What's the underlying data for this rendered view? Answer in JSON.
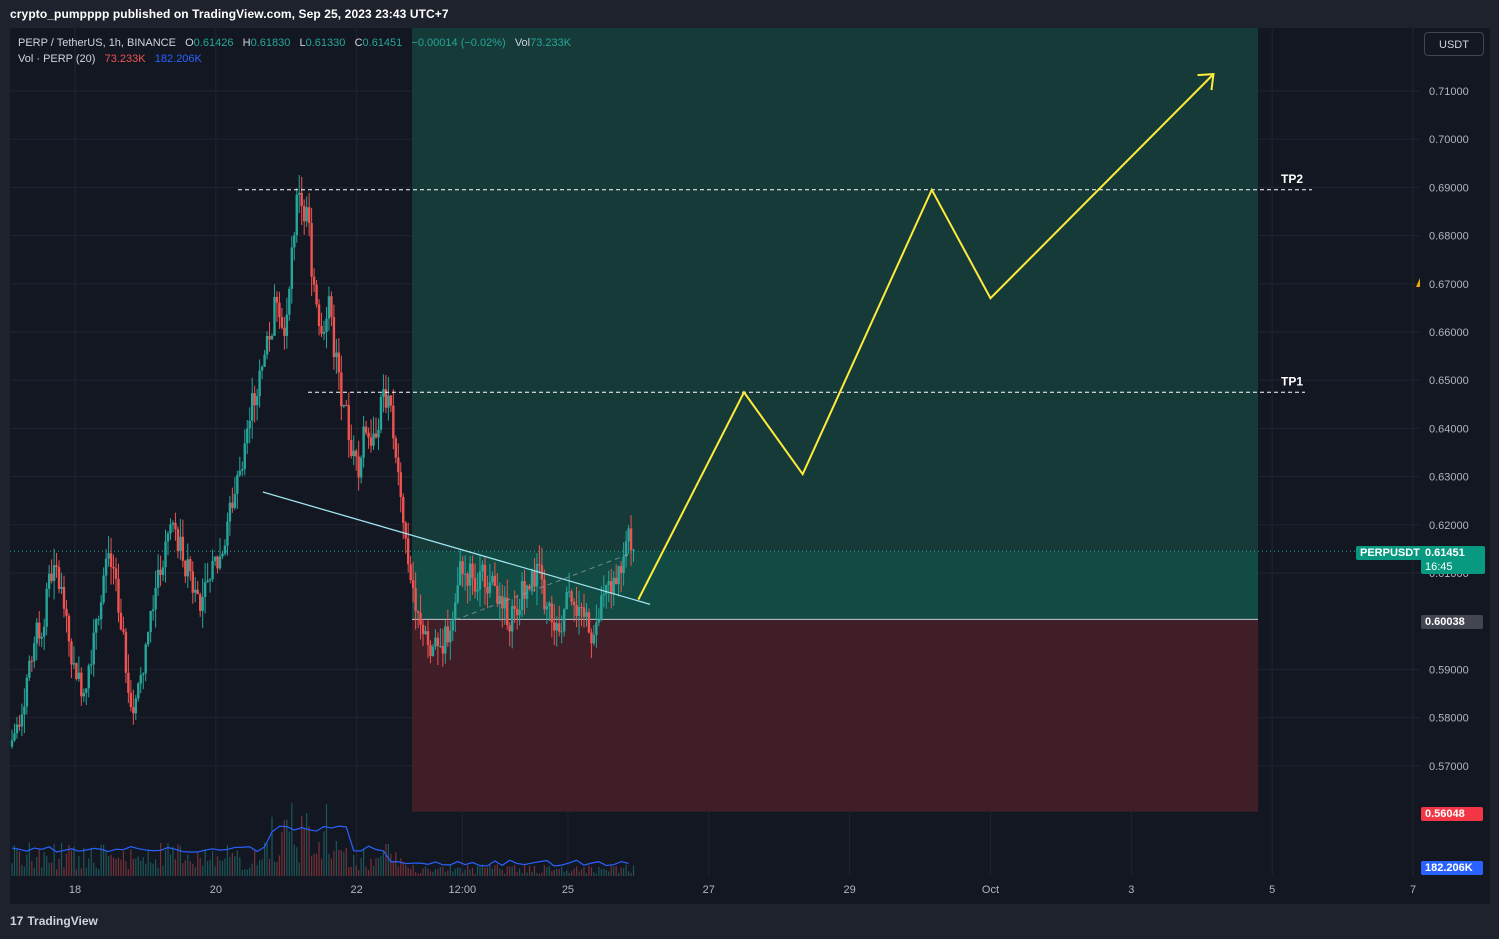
{
  "header": {
    "publisher_line": "crypto_pumpppp published on TradingView.com, Sep 25, 2023 23:43 UTC+7"
  },
  "legend": {
    "symbol": "PERP / TetherUS, 1h, BINANCE",
    "open_label": "O",
    "open": "0.61426",
    "high_label": "H",
    "high": "0.61830",
    "low_label": "L",
    "low": "0.61330",
    "close_label": "C",
    "close": "0.61451",
    "change": "−0.00014 (−0.02%)",
    "vol_label": "Vol",
    "vol": "73.233K",
    "vol_indicator": "Vol · PERP (20)",
    "vol_value": "73.233K",
    "vol_ma_value": "182.206K"
  },
  "toolbar": {
    "currency_button": "USDT"
  },
  "price_axis": {
    "ticks": [
      "0.71000",
      "0.70000",
      "0.69000",
      "0.68000",
      "0.67000",
      "0.66000",
      "0.65000",
      "0.64000",
      "0.63000",
      "0.62000",
      "0.61000",
      "0.59000",
      "0.58000",
      "0.57000"
    ],
    "current_symbol_label": "PERPUSDT",
    "current_price": "0.61451",
    "countdown": "16:45",
    "entry_price": "0.60038",
    "stop_price": "0.56048",
    "volume_ma": "182.206K"
  },
  "time_axis": {
    "ticks": [
      "18",
      "20",
      "22",
      "12:00",
      "25",
      "27",
      "29",
      "Oct",
      "3",
      "5",
      "7"
    ]
  },
  "annotations": {
    "tp1": "TP1",
    "tp2": "TP2"
  },
  "footer": {
    "brand": "TradingView",
    "brand_mark": "17"
  },
  "colors": {
    "bg": "#131722",
    "up": "#26a69a",
    "down": "#ef5350",
    "long_zone": "#16413b",
    "short_zone": "#3f1e27",
    "projection": "#ffeb3b",
    "trendline": "#9fe3ee",
    "vol_ma": "#2962ff"
  },
  "chart_data": {
    "type": "candlestick",
    "y_range": [
      0.555,
      0.717
    ],
    "x_ticks": [
      {
        "label": "18",
        "t": "2023-09-18"
      },
      {
        "label": "20",
        "t": "2023-09-20"
      },
      {
        "label": "22",
        "t": "2023-09-22"
      },
      {
        "label": "12:00",
        "t": "2023-09-23 12:00"
      },
      {
        "label": "25",
        "t": "2023-09-25"
      },
      {
        "label": "27",
        "t": "2023-09-27"
      },
      {
        "label": "29",
        "t": "2023-09-29"
      },
      {
        "label": "Oct",
        "t": "2023-10-01"
      },
      {
        "label": "3",
        "t": "2023-10-03"
      },
      {
        "label": "5",
        "t": "2023-10-05"
      },
      {
        "label": "7",
        "t": "2023-10-07"
      }
    ],
    "price_path_close": [
      0.578,
      0.585,
      0.592,
      0.598,
      0.604,
      0.61,
      0.606,
      0.596,
      0.59,
      0.586,
      0.594,
      0.603,
      0.612,
      0.608,
      0.596,
      0.588,
      0.582,
      0.592,
      0.6,
      0.608,
      0.614,
      0.62,
      0.616,
      0.61,
      0.606,
      0.604,
      0.608,
      0.612,
      0.618,
      0.625,
      0.633,
      0.64,
      0.646,
      0.652,
      0.66,
      0.668,
      0.662,
      0.676,
      0.69,
      0.684,
      0.67,
      0.662,
      0.668,
      0.654,
      0.642,
      0.636,
      0.632,
      0.64,
      0.638,
      0.644,
      0.646,
      0.636,
      0.62,
      0.61,
      0.604,
      0.598,
      0.594,
      0.592,
      0.598,
      0.606,
      0.612,
      0.61,
      0.608,
      0.61,
      0.612,
      0.606,
      0.602,
      0.604,
      0.606,
      0.606,
      0.61,
      0.604,
      0.602,
      0.6,
      0.604,
      0.606,
      0.602,
      0.6,
      0.598,
      0.604,
      0.606,
      0.61,
      0.614,
      0.616
    ],
    "trade_setup": {
      "entry": 0.60038,
      "stop": 0.56048,
      "current": 0.61451,
      "tp1": 0.6475,
      "tp2": 0.6895,
      "zone_top": 0.717
    },
    "trendline": [
      [
        "2023-09-20 16:00",
        0.6268
      ],
      [
        "2023-09-26 04:00",
        0.6035
      ]
    ],
    "projection_path": [
      [
        "2023-09-26 00:00",
        0.6045
      ],
      [
        "2023-09-27 12:00",
        0.6475
      ],
      [
        "2023-09-28 08:00",
        0.6305
      ],
      [
        "2023-09-30 04:00",
        0.6895
      ],
      [
        "2023-10-01 00:00",
        0.667
      ],
      [
        "2023-10-04 04:00",
        0.7135
      ]
    ],
    "volume_ma_series": "blue"
  }
}
